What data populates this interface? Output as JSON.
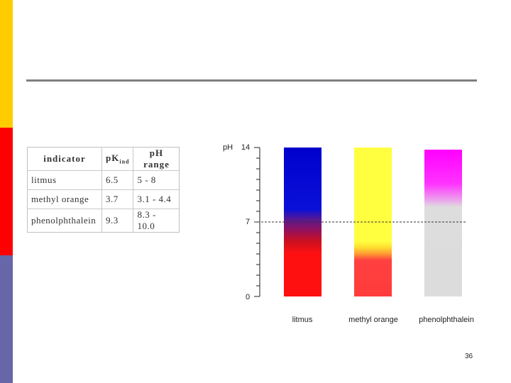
{
  "slide": {
    "page_number": "36",
    "colors": {
      "stripe_top": "#ffcc00",
      "stripe_middle": "#ff0000",
      "stripe_bottom": "#6666a8",
      "rule": "#808080"
    }
  },
  "table": {
    "headers": {
      "indicator": "indicator",
      "pk": "pK",
      "pk_sub": "ind",
      "ph_range": "pH range"
    },
    "rows": [
      {
        "indicator": "litmus",
        "pk": "6.5",
        "range": "5 - 8"
      },
      {
        "indicator": "methyl orange",
        "pk": "3.7",
        "range": "3.1 - 4.4"
      },
      {
        "indicator": "phenolphthalein",
        "pk": "9.3",
        "range": "8.3 - 10.0"
      }
    ]
  },
  "ph_scale": {
    "axis_label": "pH",
    "min": 0,
    "mid": 7,
    "max": 14,
    "tick_labels": [
      "0",
      "7",
      "14"
    ],
    "reference_line_ph": 7,
    "columns": [
      {
        "label": "litmus",
        "ph_top": 14,
        "stops": [
          [
            14,
            "#0000cc"
          ],
          [
            8.2,
            "#0a10d8"
          ],
          [
            7.2,
            "#5a1890"
          ],
          [
            6.0,
            "#a01050"
          ],
          [
            5.2,
            "#cc1020"
          ],
          [
            4.0,
            "#ff1010"
          ],
          [
            0,
            "#ff1010"
          ]
        ]
      },
      {
        "label": "methyl orange",
        "ph_top": 14,
        "stops": [
          [
            14,
            "#ffff40"
          ],
          [
            5.2,
            "#ffff40"
          ],
          [
            4.6,
            "#ffdd30"
          ],
          [
            4.0,
            "#ff9933"
          ],
          [
            3.4,
            "#ff4040"
          ],
          [
            0,
            "#ff3b3b"
          ]
        ]
      },
      {
        "label": "phenolphthalein",
        "ph_top": 13.8,
        "stops": [
          [
            13.8,
            "#ff00ff"
          ],
          [
            10.6,
            "#ff33ff"
          ],
          [
            9.2,
            "#ee99ee"
          ],
          [
            8.4,
            "#dddddd"
          ],
          [
            0,
            "#dcdcdc"
          ]
        ]
      }
    ]
  }
}
